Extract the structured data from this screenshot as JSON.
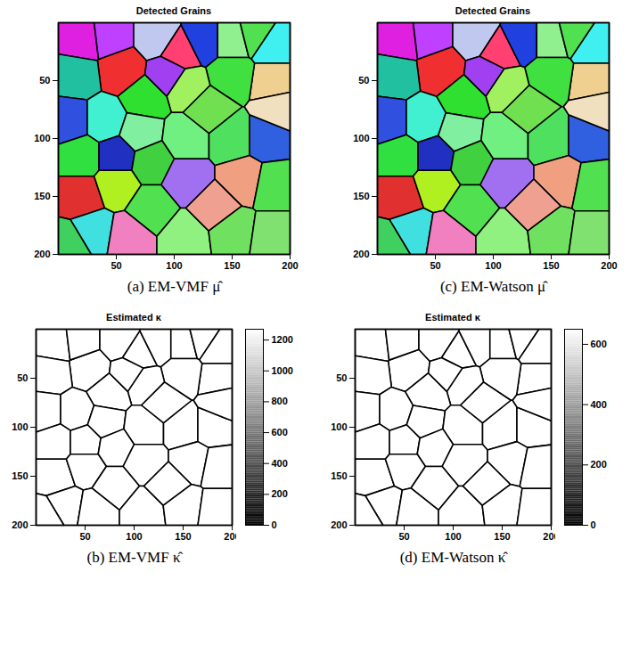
{
  "chart_data": [
    {
      "type": "image",
      "title": "Detected Grains",
      "caption": "(a) EM-VMF μ̂",
      "xlim": [
        0,
        200
      ],
      "ylim": [
        200,
        0
      ],
      "xticks": [
        50,
        100,
        150,
        200
      ],
      "yticks": [
        50,
        100,
        150,
        200
      ],
      "grains": {
        "x": [
          20,
          55,
          45,
          85,
          105,
          125,
          150,
          170,
          185,
          185,
          150,
          110,
          75,
          15,
          10,
          40,
          70,
          110,
          150,
          180,
          130,
          20,
          50,
          80,
          110,
          160,
          185,
          20,
          50,
          80,
          30,
          60,
          110,
          150,
          185,
          135,
          10,
          95,
          190
        ],
        "y": [
          15,
          40,
          12,
          12,
          25,
          15,
          15,
          10,
          20,
          50,
          45,
          55,
          65,
          45,
          85,
          85,
          95,
          100,
          100,
          100,
          75,
          115,
          115,
          120,
          135,
          135,
          140,
          150,
          140,
          160,
          180,
          185,
          185,
          180,
          185,
          160,
          192,
          45,
          75
        ],
        "colors": [
          "#e020e0",
          "#f03030",
          "#c040ff",
          "#c0c8f0",
          "#ff4070",
          "#2040e0",
          "#90f090",
          "#50e050",
          "#40f0f0",
          "#f0d090",
          "#40e040",
          "#a0f060",
          "#30e030",
          "#20c0a0",
          "#3050e0",
          "#40f0d0",
          "#80f0a0",
          "#70f080",
          "#50e060",
          "#3060e0",
          "#70e050",
          "#30e040",
          "#2030c0",
          "#40d040",
          "#a070f0",
          "#f0a080",
          "#50e050",
          "#e03030",
          "#b0f020",
          "#50e050",
          "#40e0e0",
          "#f080c0",
          "#90f080",
          "#70e060",
          "#80e070",
          "#f0a090",
          "#40d060",
          "#a040f0",
          "#f0e0c0"
        ]
      }
    },
    {
      "type": "image",
      "title": "Detected Grains",
      "caption": "(c) EM-Watson μ̂",
      "xlim": [
        0,
        200
      ],
      "ylim": [
        200,
        0
      ],
      "xticks": [
        50,
        100,
        150,
        200
      ],
      "yticks": [
        50,
        100,
        150,
        200
      ],
      "grains": {
        "x": [
          20,
          55,
          45,
          85,
          105,
          125,
          150,
          170,
          185,
          185,
          150,
          110,
          75,
          15,
          10,
          40,
          70,
          110,
          150,
          180,
          130,
          20,
          50,
          80,
          110,
          160,
          185,
          20,
          50,
          80,
          30,
          60,
          110,
          150,
          185,
          135,
          10,
          95,
          190
        ],
        "y": [
          15,
          40,
          12,
          12,
          25,
          15,
          15,
          10,
          20,
          50,
          45,
          55,
          65,
          45,
          85,
          85,
          95,
          100,
          100,
          100,
          75,
          115,
          115,
          120,
          135,
          135,
          140,
          150,
          140,
          160,
          180,
          185,
          185,
          180,
          185,
          160,
          192,
          45,
          75
        ],
        "colors": [
          "#e020e0",
          "#f03030",
          "#c040ff",
          "#c0c8f0",
          "#ff4070",
          "#2040e0",
          "#90f090",
          "#50e050",
          "#40f0f0",
          "#f0d090",
          "#40e040",
          "#a0f060",
          "#30e030",
          "#20c0a0",
          "#3050e0",
          "#40f0d0",
          "#80f0a0",
          "#70f080",
          "#50e060",
          "#3060e0",
          "#70e050",
          "#30e040",
          "#2030c0",
          "#40d040",
          "#a070f0",
          "#f0a080",
          "#50e050",
          "#e03030",
          "#b0f020",
          "#50e050",
          "#40e0e0",
          "#f080c0",
          "#90f080",
          "#70e060",
          "#80e070",
          "#f0a090",
          "#40d060",
          "#a040f0",
          "#f0e0c0"
        ]
      }
    },
    {
      "type": "heatmap",
      "title": "Estimated κ",
      "caption": "(b) EM-VMF κ̂",
      "xlim": [
        0,
        200
      ],
      "ylim": [
        200,
        0
      ],
      "xticks": [
        50,
        100,
        150,
        200
      ],
      "yticks": [
        50,
        100,
        150,
        200
      ],
      "colorbar": {
        "range": [
          0,
          1270
        ],
        "ticks": [
          0,
          200,
          400,
          600,
          800,
          1000,
          1200
        ]
      },
      "grains": {
        "x": [
          20,
          55,
          45,
          85,
          105,
          125,
          150,
          170,
          185,
          185,
          150,
          110,
          75,
          15,
          10,
          40,
          70,
          110,
          150,
          180,
          130,
          20,
          50,
          80,
          110,
          160,
          185,
          20,
          50,
          80,
          30,
          60,
          110,
          150,
          185,
          135,
          10,
          95,
          190
        ],
        "y": [
          15,
          40,
          12,
          12,
          25,
          15,
          15,
          10,
          20,
          50,
          45,
          55,
          65,
          45,
          85,
          85,
          95,
          100,
          100,
          100,
          75,
          115,
          115,
          120,
          135,
          135,
          140,
          150,
          140,
          160,
          180,
          185,
          185,
          180,
          185,
          160,
          192,
          45,
          75
        ],
        "kappa": [
          1270,
          1270,
          1270,
          1270,
          1270,
          1270,
          1270,
          1270,
          1270,
          1270,
          1270,
          1270,
          1270,
          1270,
          1270,
          1270,
          1270,
          1270,
          1270,
          1270,
          1270,
          1270,
          1270,
          1270,
          1270,
          1270,
          1270,
          1270,
          1270,
          1270,
          1270,
          1270,
          1270,
          1270,
          1270,
          1270,
          1270,
          1270,
          1270
        ]
      }
    },
    {
      "type": "heatmap",
      "title": "Estimated κ",
      "caption": "(d) EM-Watson κ̂",
      "xlim": [
        0,
        200
      ],
      "ylim": [
        200,
        0
      ],
      "xticks": [
        50,
        100,
        150,
        200
      ],
      "yticks": [
        50,
        100,
        150,
        200
      ],
      "colorbar": {
        "range": [
          0,
          650
        ],
        "ticks": [
          0,
          200,
          400,
          600
        ]
      },
      "grains": {
        "x": [
          20,
          55,
          45,
          85,
          105,
          125,
          150,
          170,
          185,
          185,
          150,
          110,
          75,
          15,
          10,
          40,
          70,
          110,
          150,
          180,
          130,
          20,
          50,
          80,
          110,
          160,
          185,
          20,
          50,
          80,
          30,
          60,
          110,
          150,
          185,
          135,
          10,
          95,
          190
        ],
        "y": [
          15,
          40,
          12,
          12,
          25,
          15,
          15,
          10,
          20,
          50,
          45,
          55,
          65,
          45,
          85,
          85,
          95,
          100,
          100,
          100,
          75,
          115,
          115,
          120,
          135,
          135,
          140,
          150,
          140,
          160,
          180,
          185,
          185,
          180,
          185,
          160,
          192,
          45,
          75
        ],
        "kappa": [
          650,
          650,
          650,
          650,
          650,
          650,
          650,
          650,
          650,
          650,
          650,
          650,
          650,
          650,
          650,
          650,
          650,
          650,
          650,
          650,
          650,
          650,
          650,
          650,
          650,
          650,
          650,
          650,
          650,
          650,
          650,
          650,
          650,
          650,
          650,
          650,
          650,
          650,
          650
        ]
      }
    }
  ]
}
